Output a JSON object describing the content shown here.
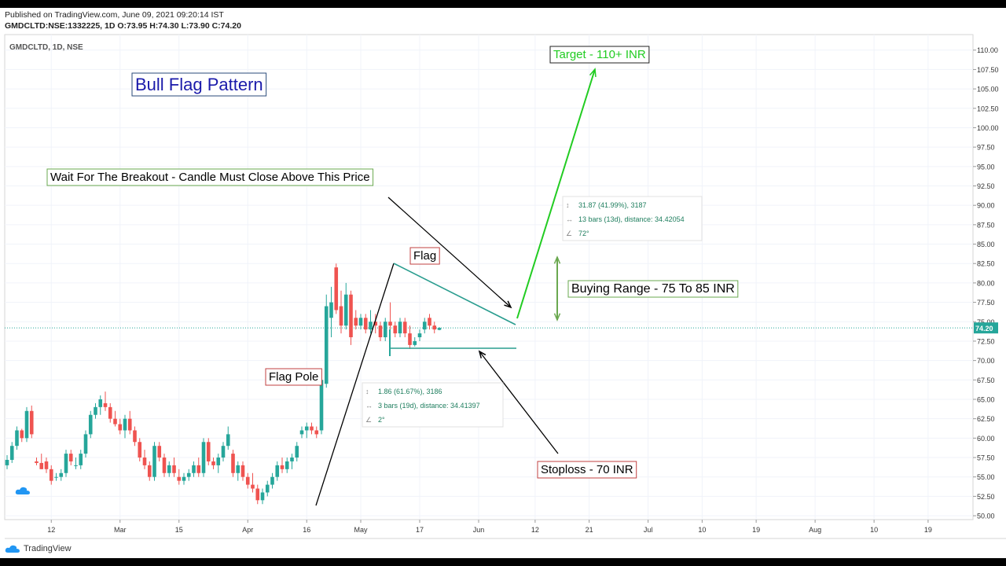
{
  "header": {
    "published": "Published on TradingView.com, June 09, 2021 09:20:14 IST",
    "symbol_line": "GMDCLTD:NSE:1332225, 1D O:73.95 H:74.30 L:73.90 C:74.20"
  },
  "chart_label": "GMDCLTD, 1D, NSE",
  "footer_brand": "TradingView",
  "colors": {
    "up": "#26a69a",
    "down": "#ef5350",
    "title_text": "#1a1aaa",
    "target_green": "#22cc22",
    "flag_line": "#2a9d8f",
    "range_arrow": "#6aa84f",
    "price_tag": "#26a69a"
  },
  "chart_data": {
    "type": "candlestick",
    "title": "Bull Flag Pattern",
    "ylim": [
      49.5,
      112.0
    ],
    "y_ticks": [
      "50.00",
      "52.50",
      "55.00",
      "57.50",
      "60.00",
      "62.50",
      "65.00",
      "67.50",
      "70.00",
      "72.50",
      "75.00",
      "77.50",
      "80.00",
      "82.50",
      "85.00",
      "87.50",
      "90.00",
      "92.50",
      "95.00",
      "97.50",
      "100.00",
      "102.50",
      "105.00",
      "107.50",
      "110.00"
    ],
    "x_ticks": [
      "12",
      "Mar",
      "15",
      "Apr",
      "16",
      "May",
      "17",
      "Jun",
      "12",
      "21",
      "Jul",
      "10",
      "19",
      "Aug",
      "10",
      "19"
    ],
    "last_price": "74.20",
    "candles": [
      [
        56.5,
        57.8,
        56.0,
        57.2
      ],
      [
        57.2,
        59.5,
        56.8,
        59.0
      ],
      [
        59.0,
        61.5,
        58.5,
        61.0
      ],
      [
        61.0,
        61.2,
        59.5,
        60.0
      ],
      [
        60.0,
        64.0,
        59.5,
        63.5
      ],
      [
        63.5,
        64.2,
        60.0,
        60.5
      ],
      [
        57.0,
        57.5,
        56.5,
        56.8
      ],
      [
        56.8,
        58.0,
        56.0,
        56.0
      ],
      [
        57.0,
        57.5,
        55.5,
        56.0
      ],
      [
        56.0,
        56.5,
        54.0,
        54.5
      ],
      [
        55.0,
        55.5,
        54.5,
        55.0
      ],
      [
        55.0,
        56.0,
        54.5,
        55.5
      ],
      [
        55.5,
        58.5,
        55.0,
        58.0
      ],
      [
        58.0,
        58.5,
        56.5,
        57.0
      ],
      [
        56.5,
        57.5,
        56.0,
        56.5
      ],
      [
        56.5,
        58.5,
        56.0,
        58.0
      ],
      [
        58.0,
        61.0,
        57.5,
        60.5
      ],
      [
        60.5,
        63.5,
        60.0,
        63.0
      ],
      [
        63.0,
        64.5,
        62.5,
        64.0
      ],
      [
        64.0,
        65.5,
        63.0,
        65.0
      ],
      [
        64.5,
        66.0,
        63.5,
        64.0
      ],
      [
        64.0,
        64.5,
        62.0,
        62.5
      ],
      [
        62.5,
        63.5,
        61.5,
        61.8
      ],
      [
        61.8,
        62.5,
        60.5,
        61.0
      ],
      [
        61.0,
        63.0,
        60.0,
        62.5
      ],
      [
        62.5,
        63.5,
        60.5,
        61.0
      ],
      [
        61.0,
        61.5,
        59.0,
        59.5
      ],
      [
        59.5,
        60.0,
        57.0,
        57.5
      ],
      [
        57.5,
        58.5,
        56.0,
        56.5
      ],
      [
        56.5,
        57.0,
        54.5,
        55.0
      ],
      [
        55.0,
        59.5,
        54.5,
        59.0
      ],
      [
        59.0,
        59.5,
        57.0,
        57.5
      ],
      [
        57.5,
        58.0,
        55.0,
        55.5
      ],
      [
        55.5,
        57.0,
        55.0,
        56.5
      ],
      [
        56.5,
        57.5,
        55.0,
        55.5
      ],
      [
        55.0,
        56.0,
        54.0,
        54.5
      ],
      [
        54.5,
        55.5,
        54.0,
        55.0
      ],
      [
        55.0,
        56.0,
        54.5,
        55.5
      ],
      [
        55.5,
        57.0,
        55.0,
        56.5
      ],
      [
        56.5,
        57.5,
        55.0,
        55.5
      ],
      [
        55.5,
        60.0,
        55.0,
        59.5
      ],
      [
        59.5,
        60.0,
        56.5,
        57.0
      ],
      [
        57.0,
        57.5,
        56.0,
        56.5
      ],
      [
        56.5,
        58.0,
        55.5,
        57.5
      ],
      [
        57.5,
        59.5,
        57.0,
        59.0
      ],
      [
        59.0,
        61.5,
        58.5,
        60.5
      ],
      [
        58.0,
        58.5,
        55.0,
        55.5
      ],
      [
        55.5,
        57.0,
        54.5,
        56.5
      ],
      [
        56.5,
        57.0,
        54.5,
        55.0
      ],
      [
        55.0,
        55.5,
        53.5,
        54.0
      ],
      [
        54.0,
        55.5,
        53.0,
        53.5
      ],
      [
        53.5,
        54.0,
        51.5,
        52.0
      ],
      [
        52.0,
        53.5,
        51.5,
        53.0
      ],
      [
        53.0,
        54.5,
        52.5,
        54.0
      ],
      [
        54.0,
        55.5,
        53.5,
        55.0
      ],
      [
        55.0,
        57.0,
        54.5,
        56.5
      ],
      [
        56.5,
        57.5,
        55.5,
        56.0
      ],
      [
        56.0,
        57.5,
        55.5,
        57.0
      ],
      [
        57.0,
        58.0,
        56.0,
        57.5
      ],
      [
        57.5,
        59.5,
        57.0,
        59.0
      ],
      [
        60.5,
        61.5,
        60.0,
        61.0
      ],
      [
        61.0,
        62.0,
        60.0,
        61.5
      ],
      [
        61.5,
        62.0,
        60.5,
        61.0
      ],
      [
        61.0,
        61.5,
        60.0,
        60.5
      ],
      [
        61.0,
        68.0,
        60.5,
        67.5
      ],
      [
        67.0,
        78.5,
        66.5,
        77.0
      ],
      [
        75.5,
        79.5,
        73.0,
        77.5
      ],
      [
        82.0,
        82.5,
        76.0,
        76.5
      ],
      [
        77.0,
        79.0,
        73.5,
        74.5
      ],
      [
        74.5,
        80.0,
        74.0,
        78.5
      ],
      [
        78.5,
        79.0,
        72.0,
        73.0
      ],
      [
        75.5,
        76.5,
        74.0,
        74.5
      ],
      [
        74.5,
        76.0,
        74.0,
        75.5
      ],
      [
        75.5,
        76.0,
        73.5,
        74.0
      ],
      [
        74.0,
        76.5,
        73.5,
        75.0
      ],
      [
        75.0,
        76.0,
        73.5,
        74.5
      ],
      [
        74.5,
        75.0,
        72.5,
        73.0
      ],
      [
        73.0,
        75.5,
        72.5,
        75.0
      ],
      [
        75.0,
        77.5,
        73.5,
        74.5
      ],
      [
        74.5,
        75.0,
        73.0,
        73.5
      ],
      [
        73.5,
        75.5,
        73.0,
        75.0
      ],
      [
        75.0,
        75.5,
        73.0,
        73.5
      ],
      [
        73.5,
        74.5,
        71.5,
        72.0
      ],
      [
        72.0,
        73.0,
        71.8,
        72.5
      ],
      [
        73.0,
        74.0,
        72.5,
        73.5
      ],
      [
        74.0,
        75.5,
        73.5,
        75.0
      ],
      [
        75.5,
        76.0,
        74.0,
        74.5
      ],
      [
        74.5,
        75.0,
        73.5,
        74.0
      ],
      [
        73.95,
        74.3,
        73.9,
        74.2
      ]
    ]
  },
  "annotations": {
    "title_box": "Bull Flag Pattern",
    "breakout": "Wait For The Breakout - Candle Must Close Above This Price",
    "flag": "Flag",
    "flag_pole": "Flag Pole",
    "target": "Target - 110+ INR",
    "buying_range": "Buying Range - 75 To 85 INR",
    "stoploss": "Stoploss - 70 INR",
    "info_upper": [
      "31.87 (41.99%), 3187",
      "13 bars (13d), distance: 34.42054",
      "72°"
    ],
    "info_lower": [
      "1.86 (61.67%), 3186",
      "3 bars (19d), distance: 34.41397",
      "2°"
    ]
  }
}
